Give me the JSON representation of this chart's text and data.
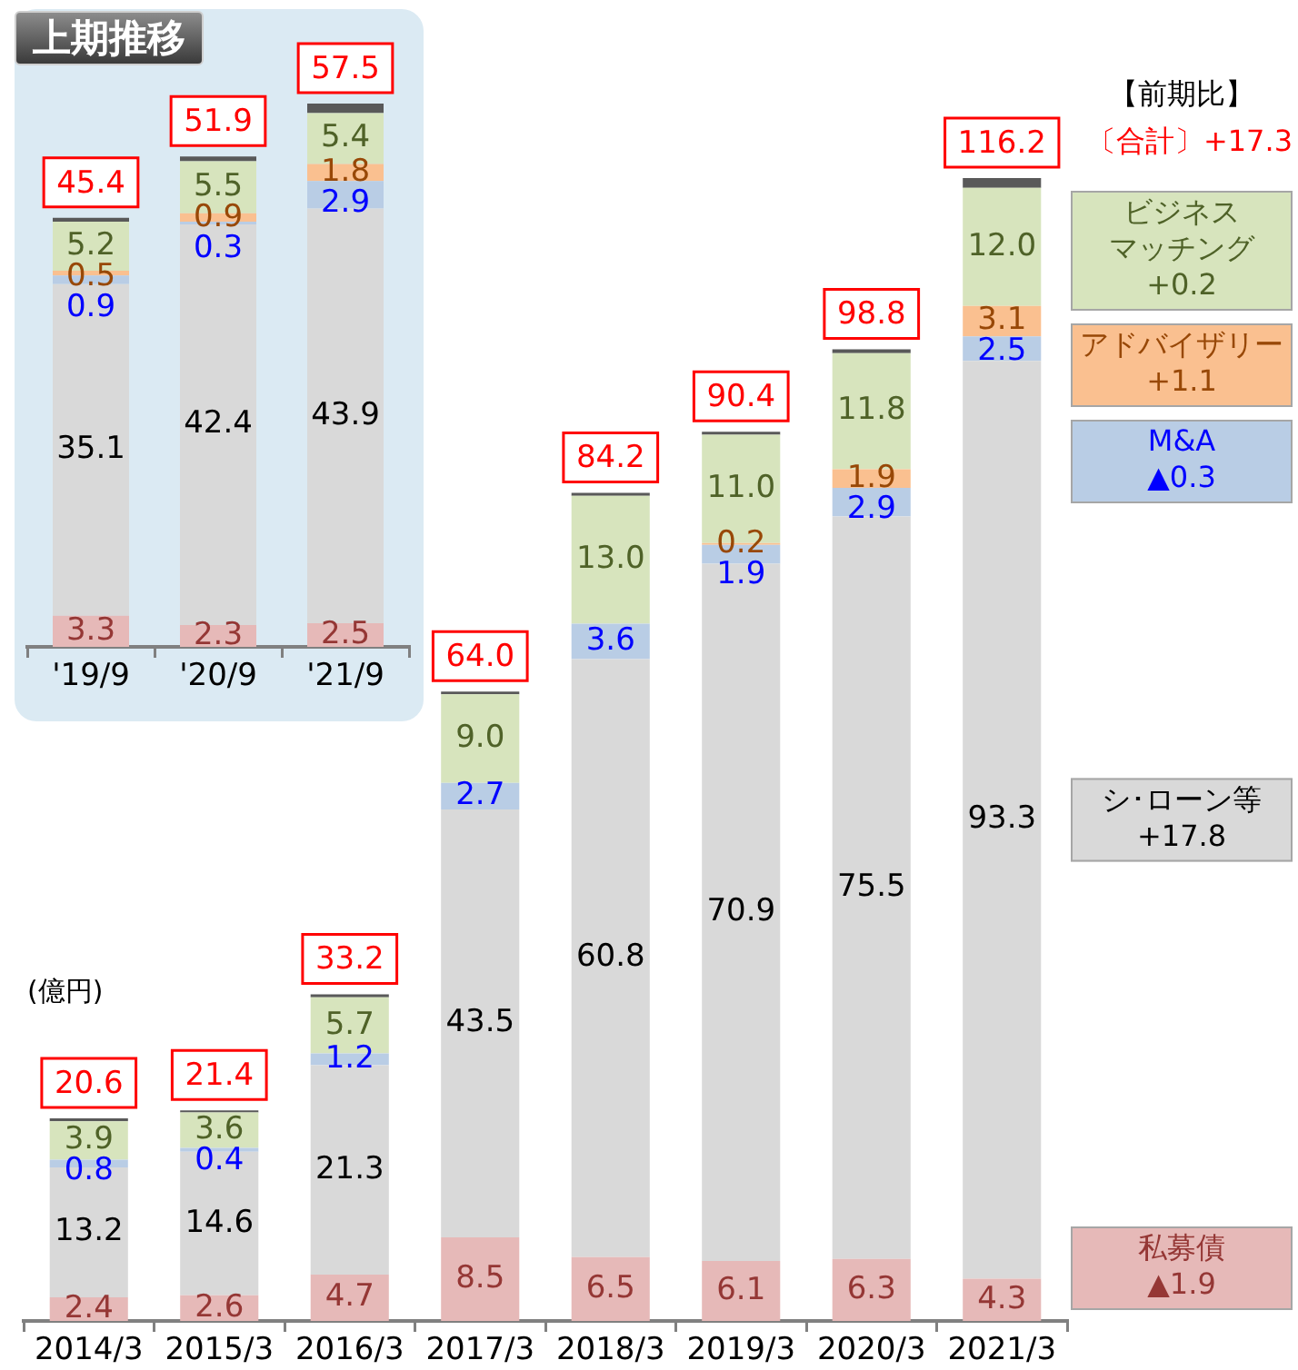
{
  "chart_data": [
    {
      "type": "bar",
      "stacked": true,
      "ylabel": "(億円)",
      "legend": "right",
      "categories": [
        "2014/3",
        "2015/3",
        "2016/3",
        "2017/3",
        "2018/3",
        "2019/3",
        "2020/3",
        "2021/3"
      ],
      "series": [
        {
          "name": "私募債",
          "color": "#e6b9b8",
          "values": [
            2.4,
            2.6,
            4.7,
            8.5,
            6.5,
            6.1,
            6.3,
            4.3
          ],
          "value_labels": [
            "2.4",
            "2.6",
            "4.7",
            "8.5",
            "6.5",
            "6.1",
            "6.3",
            "4.3"
          ]
        },
        {
          "name": "シ･ローン等",
          "color": "#d9d9d9",
          "values": [
            13.2,
            14.6,
            21.3,
            43.5,
            60.8,
            70.9,
            75.5,
            93.3
          ],
          "value_labels": [
            "13.2",
            "14.6",
            "21.3",
            "43.5",
            "60.8",
            "70.9",
            "75.5",
            "93.3"
          ]
        },
        {
          "name": "M&A",
          "color": "#b9cde5",
          "values": [
            0.8,
            0.4,
            1.2,
            2.7,
            3.6,
            1.9,
            2.9,
            2.5
          ],
          "value_labels": [
            "0.8",
            "0.4",
            "1.2",
            "2.7",
            "3.6",
            "1.9",
            "2.9",
            "2.5"
          ]
        },
        {
          "name": "アドバイザリー",
          "color": "#fac090",
          "values": [
            null,
            null,
            null,
            null,
            null,
            0.2,
            1.9,
            3.1
          ],
          "value_labels": [
            null,
            null,
            null,
            null,
            null,
            "0.2",
            "1.9",
            "3.1"
          ]
        },
        {
          "name": "ビジネスマッチング",
          "color": "#d7e4bd",
          "values": [
            3.9,
            3.6,
            5.7,
            9.0,
            13.0,
            11.0,
            11.8,
            12.0
          ],
          "value_labels": [
            "3.9",
            "3.6",
            "5.7",
            "9.0",
            "13.0",
            "11.0",
            "11.8",
            "12.0"
          ]
        },
        {
          "color": "#595959",
          "values": [
            0.3,
            0.2,
            0.3,
            0.3,
            0.3,
            0.3,
            0.4,
            1.0
          ]
        }
      ],
      "totals": [
        "20.6",
        "21.4",
        "33.2",
        "64.0",
        "84.2",
        "90.4",
        "98.8",
        "116.2"
      ],
      "annotations": [
        "【前期比】",
        "〔合計〕+17.3",
        "+0.2",
        "+1.1",
        "▲0.3",
        "+17.8",
        "▲1.9"
      ]
    },
    {
      "type": "bar",
      "stacked": true,
      "title": "上期推移",
      "categories": [
        "'19/9",
        "'20/9",
        "'21/9"
      ],
      "series": [
        {
          "color": "#e6b9b8",
          "values": [
            3.3,
            2.3,
            2.5
          ],
          "value_labels": [
            "3.3",
            "2.3",
            "2.5"
          ]
        },
        {
          "color": "#d9d9d9",
          "values": [
            35.1,
            42.4,
            43.9
          ],
          "value_labels": [
            "35.1",
            "42.4",
            "43.9"
          ]
        },
        {
          "color": "#b9cde5",
          "values": [
            0.9,
            0.3,
            2.9
          ],
          "value_labels": [
            "0.9",
            "0.3",
            "2.9"
          ]
        },
        {
          "color": "#fac090",
          "values": [
            0.5,
            0.9,
            1.8
          ],
          "value_labels": [
            "0.5",
            "0.9",
            "1.8"
          ]
        },
        {
          "color": "#d7e4bd",
          "values": [
            5.2,
            5.5,
            5.4
          ],
          "value_labels": [
            "5.2",
            "5.5",
            "5.4"
          ]
        },
        {
          "color": "#595959",
          "values": [
            0.4,
            0.5,
            1.0
          ]
        }
      ],
      "totals": [
        "45.4",
        "51.9",
        "57.5"
      ]
    }
  ]
}
